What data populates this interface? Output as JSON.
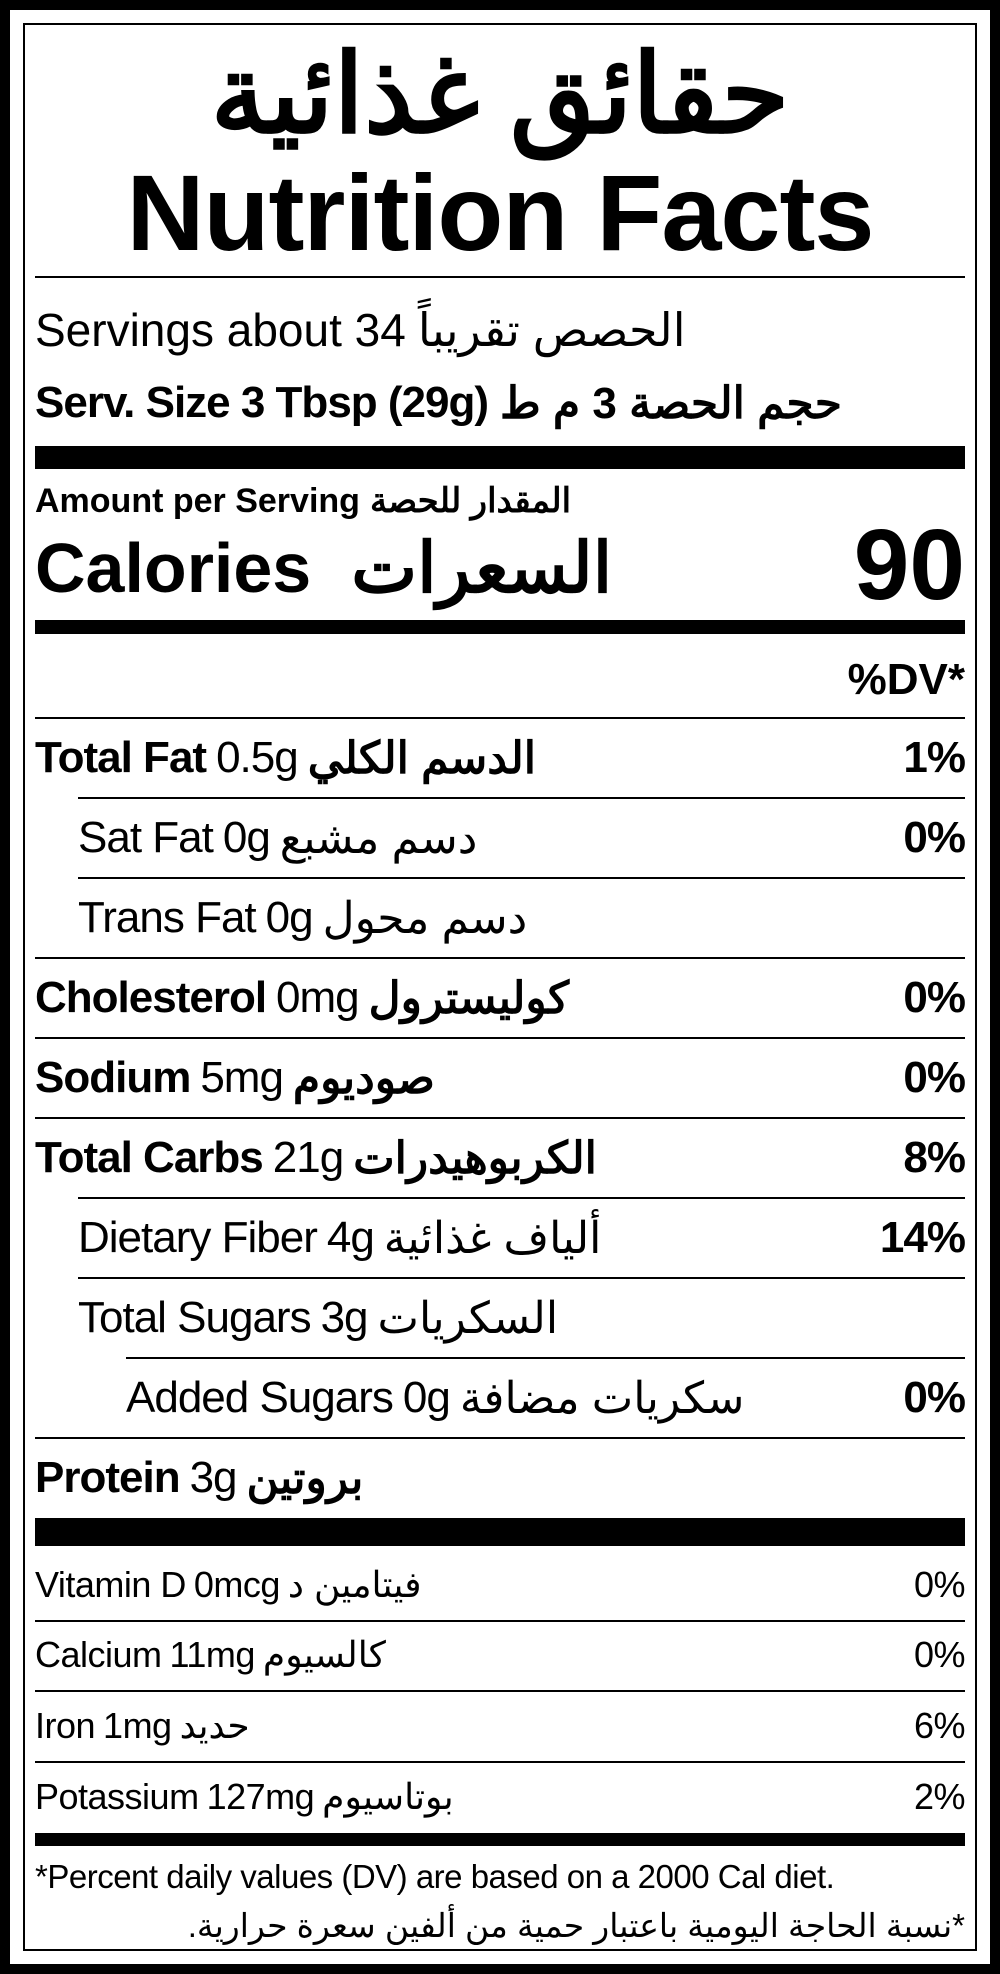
{
  "header": {
    "title_ar": "حقائق غذائية",
    "title_en": "Nutrition Facts"
  },
  "servings": {
    "en": "Servings about 34",
    "ar": "الحصص تقريباً"
  },
  "serving_size": {
    "en": "Serv. Size 3 Tbsp (29g)",
    "ar": "حجم الحصة 3 م ط"
  },
  "amount": {
    "en": "Amount per Serving",
    "ar": "المقدار للحصة"
  },
  "calories": {
    "en": "Calories",
    "ar": "السعرات",
    "value": "90"
  },
  "dv_header": "%DV*",
  "nutrients": [
    {
      "name": "Total Fat",
      "amount": "0.5g",
      "ar": "الدسم الكلي",
      "dv": "1%",
      "bold": true,
      "indent": 0
    },
    {
      "name": "Sat Fat",
      "amount": "0g",
      "ar": "دسم مشبع",
      "dv": "0%",
      "bold": false,
      "indent": 1
    },
    {
      "name": "Trans Fat",
      "amount": "0g",
      "ar": "دسم محول",
      "dv": "",
      "bold": false,
      "indent": 1
    },
    {
      "name": "Cholesterol",
      "amount": "0mg",
      "ar": "كوليسترول",
      "dv": "0%",
      "bold": true,
      "indent": 0
    },
    {
      "name": "Sodium",
      "amount": "5mg",
      "ar": "صوديوم",
      "dv": "0%",
      "bold": true,
      "indent": 0
    },
    {
      "name": "Total Carbs",
      "amount": "21g",
      "ar": "الكربوهيدرات",
      "dv": "8%",
      "bold": true,
      "indent": 0
    },
    {
      "name": "Dietary Fiber",
      "amount": "4g",
      "ar": "ألياف غذائية",
      "dv": "14%",
      "bold": false,
      "indent": 1
    },
    {
      "name": "Total Sugars",
      "amount": "3g",
      "ar": "السكريات",
      "dv": "",
      "bold": false,
      "indent": 1
    },
    {
      "name": "Added Sugars",
      "amount": "0g",
      "ar": "سكريات مضافة",
      "dv": "0%",
      "bold": false,
      "indent": 2
    },
    {
      "name": "Protein",
      "amount": "3g",
      "ar": "بروتين",
      "dv": "",
      "bold": true,
      "indent": 0
    }
  ],
  "vitamins": [
    {
      "name": "Vitamin D",
      "amount": "0mcg",
      "ar": "فيتامين د",
      "dv": "0%"
    },
    {
      "name": "Calcium",
      "amount": "11mg",
      "ar": "كالسيوم",
      "dv": "0%"
    },
    {
      "name": "Iron",
      "amount": "1mg",
      "ar": "حديد",
      "dv": "6%"
    },
    {
      "name": "Potassium",
      "amount": "127mg",
      "ar": "بوتاسيوم",
      "dv": "2%"
    }
  ],
  "footnote": {
    "en": "*Percent daily values (DV)  are based on a 2000 Cal diet.",
    "ar": "*نسبة الحاجة اليومية باعتبار حمية من ألفين سعرة حرارية."
  }
}
